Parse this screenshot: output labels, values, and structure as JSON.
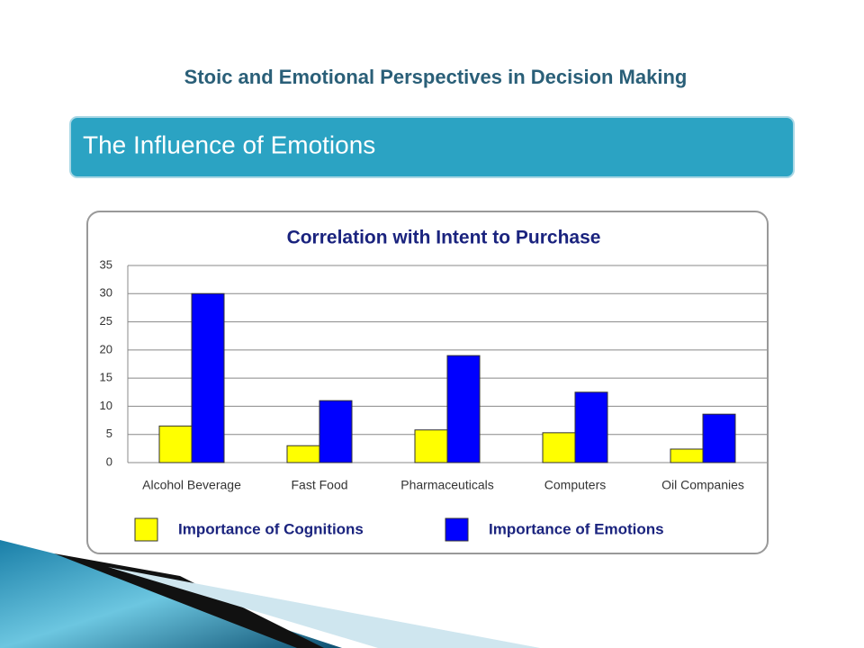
{
  "slide_title": "Stoic and Emotional Perspectives in Decision Making",
  "banner": "The Influence of Emotions",
  "chart_data": {
    "type": "bar",
    "title": "Correlation with Intent to Purchase",
    "categories": [
      "Alcohol Beverage",
      "Fast Food",
      "Pharmaceuticals",
      "Computers",
      "Oil Companies"
    ],
    "series": [
      {
        "name": "Importance of Cognitions",
        "color": "#ffff00",
        "values": [
          6.5,
          3,
          5.8,
          5.3,
          2.4
        ]
      },
      {
        "name": "Importance of Emotions",
        "color": "#0000ff",
        "values": [
          30,
          11,
          19,
          12.5,
          8.6
        ]
      }
    ],
    "ylim": [
      0,
      35
    ],
    "yticks": [
      0,
      5,
      10,
      15,
      20,
      25,
      30,
      35
    ],
    "grid": true
  }
}
